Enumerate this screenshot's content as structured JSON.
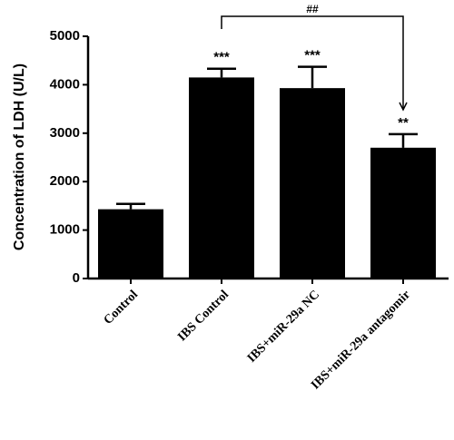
{
  "chart_data": {
    "type": "bar",
    "y_label": "Concentration of LDH (U/L)",
    "categories": [
      "Control",
      "IBS Control",
      "IBS+miR-29a NC",
      "IBS+miR-29a antagomir"
    ],
    "values": [
      1430,
      4150,
      3930,
      2700
    ],
    "errors": [
      110,
      180,
      440,
      280
    ],
    "significance": [
      null,
      "***",
      "***",
      "**"
    ],
    "bracket_label": "##",
    "color": "#000000",
    "ylim": [
      0,
      5000
    ],
    "yticks": [
      0,
      1000,
      2000,
      3000,
      4000,
      5000
    ],
    "grid": false
  }
}
